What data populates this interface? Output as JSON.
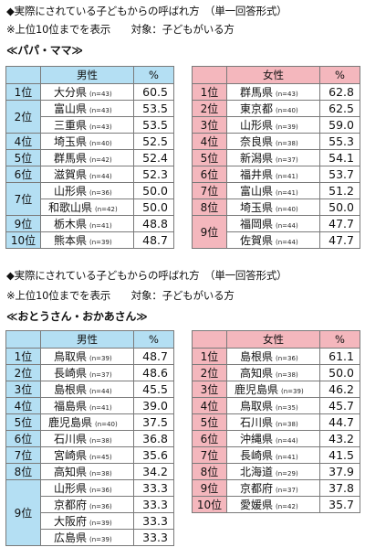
{
  "section1": {
    "title": "◆実際にされている子どもからの呼ばれ方　（単一回答形式）",
    "note": "※上位10位までを表示　　対象：子どもがいる方",
    "subtitle": "≪パパ・ママ≫",
    "male": {
      "header_gender": "男性",
      "header_pct": "%",
      "rows": [
        {
          "rank": "1位",
          "pref": "大分県",
          "n": "(n=43)",
          "value": "60.5"
        },
        {
          "rank": "2位",
          "pref": "富山県",
          "n": "(n=43)",
          "value": "53.5"
        },
        {
          "rank": "",
          "pref": "三重県",
          "n": "(n=43)",
          "value": "53.5"
        },
        {
          "rank": "4位",
          "pref": "埼玉県",
          "n": "(n=40)",
          "value": "52.5"
        },
        {
          "rank": "5位",
          "pref": "群馬県",
          "n": "(n=42)",
          "value": "52.4"
        },
        {
          "rank": "6位",
          "pref": "滋賀県",
          "n": "(n=44)",
          "value": "52.3"
        },
        {
          "rank": "7位",
          "pref": "山形県",
          "n": "(n=36)",
          "value": "50.0"
        },
        {
          "rank": "",
          "pref": "和歌山県",
          "n": "(n=42)",
          "value": "50.0"
        },
        {
          "rank": "9位",
          "pref": "栃木県",
          "n": "(n=41)",
          "value": "48.8"
        },
        {
          "rank": "10位",
          "pref": "熊本県",
          "n": "(n=39)",
          "value": "48.7"
        }
      ]
    },
    "female": {
      "header_gender": "女性",
      "header_pct": "%",
      "rows": [
        {
          "rank": "1位",
          "pref": "群馬県",
          "n": "(n=43)",
          "value": "62.8"
        },
        {
          "rank": "2位",
          "pref": "東京都",
          "n": "(n=40)",
          "value": "62.5"
        },
        {
          "rank": "3位",
          "pref": "山形県",
          "n": "(n=39)",
          "value": "59.0"
        },
        {
          "rank": "4位",
          "pref": "奈良県",
          "n": "(n=38)",
          "value": "55.3"
        },
        {
          "rank": "5位",
          "pref": "新潟県",
          "n": "(n=37)",
          "value": "54.1"
        },
        {
          "rank": "6位",
          "pref": "福井県",
          "n": "(n=41)",
          "value": "53.7"
        },
        {
          "rank": "7位",
          "pref": "富山県",
          "n": "(n=41)",
          "value": "51.2"
        },
        {
          "rank": "8位",
          "pref": "埼玉県",
          "n": "(n=40)",
          "value": "50.0"
        },
        {
          "rank": "9位",
          "pref": "福岡県",
          "n": "(n=44)",
          "value": "47.7"
        },
        {
          "rank": "",
          "pref": "佐賀県",
          "n": "(n=44)",
          "value": "47.7"
        }
      ]
    }
  },
  "section2": {
    "title": "◆実際にされている子どもからの呼ばれ方　（単一回答形式）",
    "note": "※上位10位までを表示　　対象：子どもがいる方",
    "subtitle": "≪おとうさん・おかあさん≫",
    "male": {
      "header_gender": "男性",
      "header_pct": "%",
      "rows": [
        {
          "rank": "1位",
          "pref": "鳥取県",
          "n": "(n=39)",
          "value": "48.7"
        },
        {
          "rank": "2位",
          "pref": "長崎県",
          "n": "(n=37)",
          "value": "48.6"
        },
        {
          "rank": "3位",
          "pref": "島根県",
          "n": "(n=44)",
          "value": "45.5"
        },
        {
          "rank": "4位",
          "pref": "福島県",
          "n": "(n=41)",
          "value": "39.0"
        },
        {
          "rank": "5位",
          "pref": "鹿児島県",
          "n": "(n=40)",
          "value": "37.5"
        },
        {
          "rank": "6位",
          "pref": "石川県",
          "n": "(n=38)",
          "value": "36.8"
        },
        {
          "rank": "7位",
          "pref": "宮崎県",
          "n": "(n=45)",
          "value": "35.6"
        },
        {
          "rank": "8位",
          "pref": "高知県",
          "n": "(n=38)",
          "value": "34.2"
        },
        {
          "rank": "9位",
          "pref": "山形県",
          "n": "(n=36)",
          "value": "33.3"
        },
        {
          "rank": "",
          "pref": "京都府",
          "n": "(n=36)",
          "value": "33.3"
        },
        {
          "rank": "",
          "pref": "大阪府",
          "n": "(n=39)",
          "value": "33.3"
        },
        {
          "rank": "",
          "pref": "広島県",
          "n": "(n=39)",
          "value": "33.3"
        }
      ]
    },
    "female": {
      "header_gender": "女性",
      "header_pct": "%",
      "rows": [
        {
          "rank": "1位",
          "pref": "島根県",
          "n": "(n=36)",
          "value": "61.1"
        },
        {
          "rank": "2位",
          "pref": "高知県",
          "n": "(n=38)",
          "value": "50.0"
        },
        {
          "rank": "3位",
          "pref": "鹿児島県",
          "n": "(n=39)",
          "value": "46.2"
        },
        {
          "rank": "4位",
          "pref": "鳥取県",
          "n": "(n=35)",
          "value": "45.7"
        },
        {
          "rank": "5位",
          "pref": "石川県",
          "n": "(n=38)",
          "value": "44.7"
        },
        {
          "rank": "6位",
          "pref": "沖縄県",
          "n": "(n=44)",
          "value": "43.2"
        },
        {
          "rank": "7位",
          "pref": "長崎県",
          "n": "(n=41)",
          "value": "41.5"
        },
        {
          "rank": "8位",
          "pref": "北海道",
          "n": "(n=29)",
          "value": "37.9"
        },
        {
          "rank": "9位",
          "pref": "京都府",
          "n": "(n=37)",
          "value": "37.8"
        },
        {
          "rank": "10位",
          "pref": "愛媛県",
          "n": "(n=42)",
          "value": "35.7"
        }
      ]
    }
  },
  "colors": {
    "male_header": "#b4dff3",
    "female_header": "#f4b7bd",
    "border": "#7a7a7a"
  }
}
